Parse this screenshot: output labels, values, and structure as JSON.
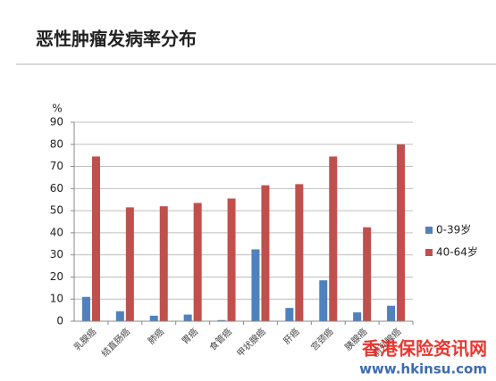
{
  "chart_data": {
    "type": "bar",
    "title": "恶性肿瘤发病率分布",
    "y_label": "%",
    "categories": [
      "乳腺癌",
      "结直肠癌",
      "肺癌",
      "胃癌",
      "食管癌",
      "甲状腺癌",
      "肝癌",
      "宫颈癌",
      "胰腺癌",
      "前列腺癌"
    ],
    "series": [
      {
        "name": "0-39岁",
        "color": "#4f81bd",
        "values": [
          11,
          4.5,
          2.5,
          3,
          0.5,
          32.5,
          6,
          18.5,
          4,
          7
        ]
      },
      {
        "name": "40-64岁",
        "color": "#c0504d",
        "values": [
          74.5,
          51.5,
          52,
          53.5,
          55.5,
          61.5,
          62,
          74.5,
          42.5,
          80
        ]
      }
    ],
    "ylim": [
      0,
      90
    ],
    "yticks": [
      0,
      10,
      20,
      30,
      40,
      50,
      60,
      70,
      80,
      90
    ],
    "grid": true,
    "legend": "right",
    "watermark": {
      "name": "香港保险资讯网",
      "url": "www.hkinsu.com"
    }
  }
}
